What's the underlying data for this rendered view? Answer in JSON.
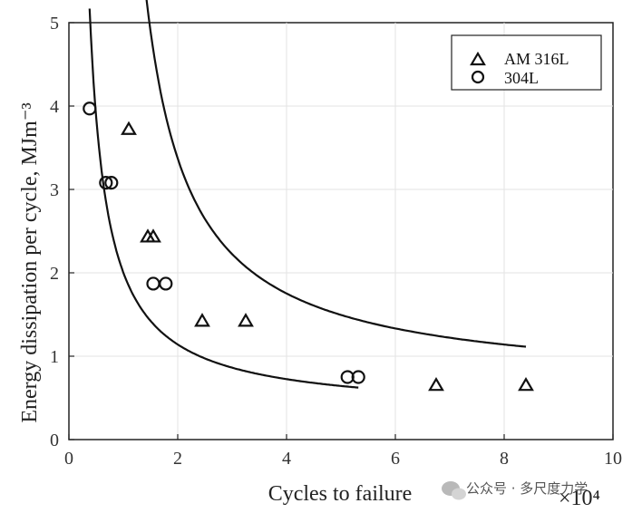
{
  "chart_data": {
    "type": "scatter",
    "xlabel": "Cycles to failure",
    "ylabel": "Energy dissipation per cycle, MJm⁻³",
    "x_multiplier_label": "×10⁴",
    "xlim": [
      0,
      10
    ],
    "ylim": [
      0,
      5
    ],
    "xticks": [
      0,
      2,
      4,
      6,
      8,
      10
    ],
    "yticks": [
      0,
      1,
      2,
      3,
      4,
      5
    ],
    "grid": true,
    "legend_position": "top-right",
    "series": [
      {
        "name": "AM 316L",
        "marker": "triangle",
        "x": [
          1.1,
          1.45,
          1.55,
          2.45,
          3.25,
          6.75,
          8.4
        ],
        "y": [
          3.72,
          2.43,
          2.43,
          1.42,
          1.42,
          0.65,
          0.65
        ],
        "fit": {
          "a": 3.85,
          "b": 0.6,
          "c": 0.62
        }
      },
      {
        "name": "304L",
        "marker": "circle",
        "x": [
          0.38,
          0.68,
          0.78,
          1.55,
          1.78,
          5.12,
          5.32
        ],
        "y": [
          3.97,
          3.08,
          3.08,
          1.87,
          1.87,
          0.75,
          0.75
        ],
        "fit": {
          "a": 1.6,
          "b": 0.05,
          "c": 0.32
        }
      }
    ]
  },
  "watermark": {
    "text": "公众号 · 多尺度力学",
    "icon": "wechat-icon"
  }
}
